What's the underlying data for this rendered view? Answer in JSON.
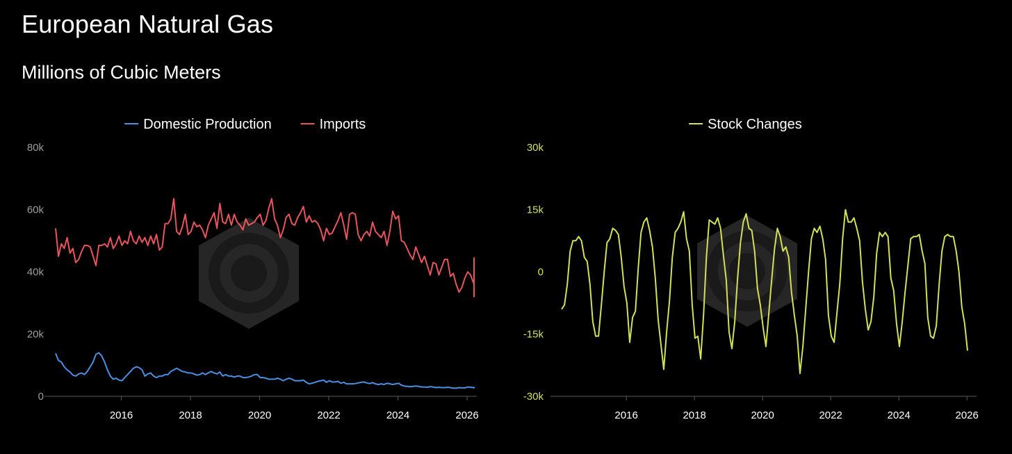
{
  "title": "European Natural Gas",
  "subtitle": "Millions of Cubic Meters",
  "colors": {
    "domestic": "#4a90e2",
    "imports": "#e8555a",
    "stock": "#d4e157",
    "axis_text": "#9e9e9e",
    "watermark": "#2e2e2e"
  },
  "chart_data": [
    {
      "type": "line",
      "legend_position": "top-center",
      "grid": false,
      "xlim": [
        2014.1,
        2026.2
      ],
      "ylim": [
        0,
        80000
      ],
      "x_ticks": [
        2016,
        2018,
        2020,
        2022,
        2024,
        2026
      ],
      "x_tick_labels": [
        "2016",
        "2018",
        "2020",
        "2022",
        "2024",
        "2026"
      ],
      "y_ticks": [
        0,
        20000,
        40000,
        60000,
        80000
      ],
      "y_tick_labels": [
        "0",
        "20k",
        "40k",
        "60k",
        "80k"
      ],
      "series": [
        {
          "name": "Domestic Production",
          "color": "#4a90e2",
          "x_start": 2014.1,
          "x_step": 0.08333,
          "values": [
            13800,
            11500,
            11000,
            9500,
            8500,
            7800,
            6800,
            6500,
            7200,
            7500,
            7000,
            8000,
            9500,
            11000,
            13500,
            14000,
            13000,
            11000,
            8500,
            6500,
            5500,
            5800,
            5200,
            5000,
            6000,
            7000,
            8000,
            9000,
            9500,
            9200,
            8500,
            6500,
            7200,
            7500,
            6500,
            6000,
            6500,
            6500,
            7000,
            7000,
            8000,
            8500,
            9000,
            8500,
            8000,
            7800,
            7500,
            7500,
            7200,
            6800,
            7000,
            7500,
            7000,
            7500,
            8000,
            7500,
            7200,
            7800,
            6500,
            7000,
            6500,
            6500,
            6200,
            6500,
            6500,
            6000,
            6000,
            6200,
            6500,
            7000,
            7000,
            6000,
            6000,
            5800,
            5500,
            5500,
            5500,
            5800,
            5500,
            5000,
            5500,
            5800,
            5500,
            5000,
            5000,
            5000,
            5200,
            4500,
            4000,
            4200,
            4500,
            4800,
            5000,
            5200,
            4500,
            5000,
            4600,
            4600,
            4800,
            4200,
            4500,
            4000,
            4000,
            4000,
            4100,
            4300,
            4500,
            4600,
            4300,
            4100,
            4400,
            4000,
            3800,
            4000,
            3800,
            4200,
            4000,
            3800,
            4000,
            4200,
            3600,
            3300,
            3200,
            3100,
            3200,
            3300,
            3200,
            3000,
            3000,
            2900,
            3100,
            3000,
            2800,
            2900,
            2800,
            2800,
            2900,
            2800,
            2600,
            2600,
            2800,
            2700,
            2700,
            3000,
            2900,
            2800,
            2800,
            2900,
            2800,
            2800,
            2700,
            2800,
            2800,
            2900,
            2900
          ],
          "x_step_note": ""
        },
        {
          "name": "Imports",
          "color": "#e8555a",
          "x_start": 2014.1,
          "x_step": 0.08333,
          "values": [
            54000,
            45000,
            49000,
            47500,
            51000,
            46000,
            47500,
            43000,
            44000,
            46500,
            48500,
            48500,
            48000,
            45000,
            42000,
            48500,
            48500,
            49000,
            48000,
            51000,
            47500,
            49000,
            51500,
            48500,
            50000,
            49000,
            53000,
            50000,
            49000,
            51500,
            49500,
            51000,
            48500,
            51500,
            49000,
            52000,
            47000,
            48000,
            55500,
            55500,
            57000,
            63500,
            53000,
            52000,
            54500,
            58500,
            52000,
            53000,
            56000,
            54500,
            55000,
            53500,
            51000,
            55000,
            57000,
            59000,
            54000,
            62000,
            56000,
            55500,
            58500,
            55000,
            58500,
            56000,
            55000,
            53500,
            57000,
            55000,
            55500,
            56000,
            57500,
            58500,
            55000,
            56500,
            60500,
            63500,
            57000,
            55000,
            51000,
            53500,
            57500,
            58500,
            55500,
            55000,
            57500,
            59000,
            61000,
            56000,
            58000,
            56000,
            56500,
            55500,
            53500,
            50000,
            54000,
            52000,
            52500,
            54500,
            56500,
            59000,
            55000,
            50500,
            58500,
            59000,
            58500,
            52000,
            50000,
            52000,
            53000,
            51500,
            56000,
            53000,
            52000,
            51000,
            53000,
            48500,
            53000,
            59500,
            57000,
            58000,
            50000,
            49500,
            47500,
            45500,
            44000,
            48000,
            45500,
            43000,
            45000,
            42000,
            39000,
            43000,
            42500,
            39000,
            41500,
            44000,
            44000,
            38500,
            39500,
            36000,
            33500,
            35000,
            38000,
            40000,
            39000,
            36500,
            37500,
            36000,
            38500,
            38000,
            39000,
            36000,
            37500,
            34000,
            32000,
            36000,
            37000,
            36000,
            38500,
            37000,
            38000,
            37000,
            40000,
            41000,
            42500,
            44500,
            43000,
            41500,
            37000,
            39000,
            41500,
            42000,
            43500,
            40000,
            38500,
            42000,
            41000,
            42500,
            42000
          ],
          "x_step_note": ""
        }
      ]
    },
    {
      "type": "line",
      "legend_position": "top-center",
      "grid": false,
      "xlim": [
        2014.1,
        2026.2
      ],
      "ylim": [
        -30000,
        30000
      ],
      "x_ticks": [
        2016,
        2018,
        2020,
        2022,
        2024,
        2026
      ],
      "x_tick_labels": [
        "2016",
        "2018",
        "2020",
        "2022",
        "2024",
        "2026"
      ],
      "y_ticks": [
        -30000,
        -15000,
        0,
        15000,
        30000
      ],
      "y_tick_labels": [
        "-30k",
        "-15k",
        "0",
        "15k",
        "30k"
      ],
      "series": [
        {
          "name": "Stock Changes",
          "color": "#d4e157",
          "x_start": 2014.1,
          "x_step": 0.08333,
          "values": [
            -9000,
            -8000,
            -3000,
            5000,
            7500,
            7500,
            8500,
            7500,
            3500,
            2500,
            -3000,
            -12000,
            -15500,
            -15500,
            -8000,
            0,
            7000,
            8000,
            10500,
            10000,
            9000,
            3500,
            -3500,
            -7500,
            -17000,
            -11000,
            -9500,
            1000,
            9500,
            12000,
            13000,
            10000,
            6000,
            -1500,
            -11500,
            -17500,
            -23500,
            -14500,
            -7000,
            3500,
            9500,
            10500,
            12000,
            14500,
            8000,
            5000,
            -8000,
            -16000,
            -15500,
            -21000,
            -10500,
            3500,
            12500,
            12000,
            11500,
            13000,
            10500,
            4000,
            -2000,
            -14500,
            -18500,
            -12000,
            -1500,
            7000,
            12000,
            14000,
            10500,
            10000,
            5000,
            -4000,
            -8000,
            -13500,
            -18000,
            -10000,
            -2000,
            5500,
            10500,
            8500,
            5000,
            6000,
            3500,
            -5000,
            -10500,
            -15500,
            -24500,
            -18000,
            -9000,
            0,
            8000,
            10500,
            9500,
            11000,
            8000,
            3000,
            -10500,
            -15500,
            -17000,
            -10000,
            -3000,
            8000,
            15000,
            12000,
            12000,
            13000,
            10500,
            7500,
            -2500,
            -9000,
            -14000,
            -12000,
            -6000,
            4500,
            9500,
            8500,
            9500,
            8500,
            -1500,
            -4500,
            -12500,
            -18000,
            -12000,
            -5000,
            1500,
            8000,
            8500,
            8500,
            9000,
            5000,
            2000,
            -11000,
            -15500,
            -16000,
            -13000,
            -3000,
            5000,
            8500,
            9000,
            8500,
            8500,
            5000,
            0,
            -8500,
            -12500,
            -19000
          ],
          "x_step_note": ""
        }
      ]
    }
  ]
}
